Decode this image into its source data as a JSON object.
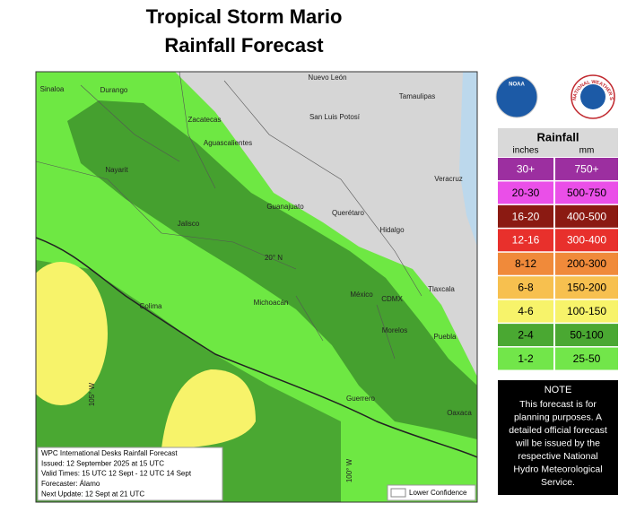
{
  "title": [
    "Tropical Storm Mario",
    "Rainfall Forecast"
  ],
  "logos": {
    "noaa": "NOAA",
    "nws": "NATIONAL WEATHER SERVICE"
  },
  "map": {
    "labels": [
      "Sinaloa",
      "Durango",
      "Nuevo León",
      "Tamaulipas",
      "San Luis Potosí",
      "Zacatecas",
      "Aguascalientes",
      "Nayarit",
      "Veracruz",
      "Guanajuato",
      "Querétaro",
      "Jalisco",
      "Hidalgo",
      "20° N",
      "Tlaxcala",
      "México",
      "CDMX",
      "Michoacán",
      "Colima",
      "Morelos",
      "Puebla",
      "Guerrero",
      "Oaxaca",
      "105° W",
      "100° W"
    ],
    "info_box": [
      "WPC International Desks Rainfall Forecast",
      "Issued: 12 September 2025 at 15 UTC",
      "Valid Times: 15 UTC 12 Sept - 12 UTC 14 Sept",
      "Forecaster: Álamo",
      "Next Update: 12 Sept at 21 UTC"
    ],
    "lower_confidence": "Lower Confidence"
  },
  "legend": {
    "title": "Rainfall",
    "units": [
      "inches",
      "mm"
    ],
    "rows": [
      {
        "inches": "30+",
        "mm": "750+",
        "color": "#9c2fa0",
        "text_color": "#ffffff"
      },
      {
        "inches": "20-30",
        "mm": "500-750",
        "color": "#ea4fe8",
        "text_color": "#000000"
      },
      {
        "inches": "16-20",
        "mm": "400-500",
        "color": "#8b1a12",
        "text_color": "#ffffff"
      },
      {
        "inches": "12-16",
        "mm": "300-400",
        "color": "#e8302c",
        "text_color": "#ffffff"
      },
      {
        "inches": "8-12",
        "mm": "200-300",
        "color": "#f08a3a",
        "text_color": "#000000"
      },
      {
        "inches": "6-8",
        "mm": "150-200",
        "color": "#f7c04f",
        "text_color": "#000000"
      },
      {
        "inches": "4-6",
        "mm": "100-150",
        "color": "#f7f36a",
        "text_color": "#000000"
      },
      {
        "inches": "2-4",
        "mm": "50-100",
        "color": "#4aa832",
        "text_color": "#000000"
      },
      {
        "inches": "1-2",
        "mm": "25-50",
        "color": "#72e64a",
        "text_color": "#000000"
      }
    ]
  },
  "note": {
    "title": "NOTE",
    "lines": [
      "This forecast is for",
      "planning purposes. A",
      "detailed official forecast",
      "will be issued by the",
      "respective National",
      "Hydro Meteorological",
      "Service."
    ]
  }
}
